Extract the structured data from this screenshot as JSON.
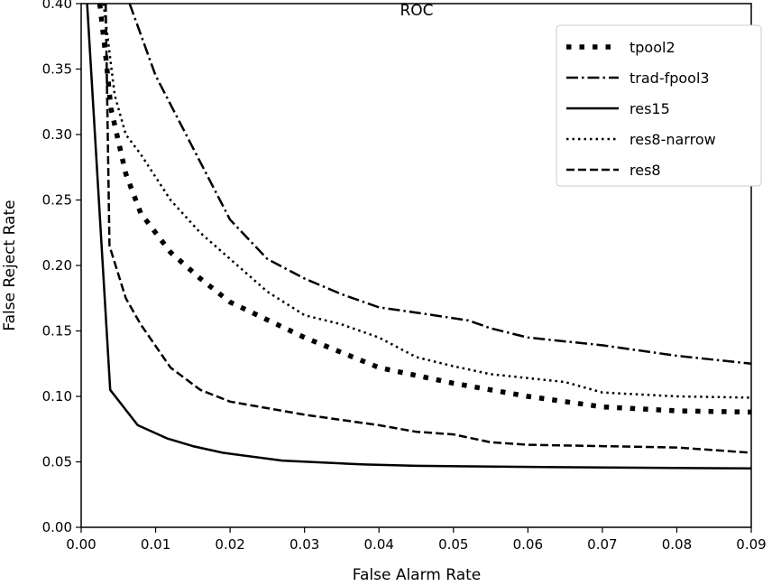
{
  "chart_data": {
    "type": "line",
    "title": "ROC",
    "xlabel": "False Alarm Rate",
    "ylabel": "False Reject Rate",
    "xlim": [
      0,
      0.09
    ],
    "ylim": [
      0,
      0.4
    ],
    "xticks": [
      "0.00",
      "0.01",
      "0.02",
      "0.03",
      "0.04",
      "0.05",
      "0.06",
      "0.07",
      "0.08",
      "0.09"
    ],
    "yticks": [
      "0.00",
      "0.05",
      "0.10",
      "0.15",
      "0.20",
      "0.25",
      "0.30",
      "0.35",
      "0.40"
    ],
    "grid": false,
    "legend_position": "top-right",
    "series": [
      {
        "name": "tpool2",
        "style": "thick-dotted",
        "color": "#000000",
        "x": [
          0.0025,
          0.0033,
          0.004,
          0.006,
          0.008,
          0.012,
          0.016,
          0.02,
          0.03,
          0.04,
          0.05,
          0.06,
          0.07,
          0.08,
          0.09
        ],
        "y": [
          0.4,
          0.36,
          0.32,
          0.27,
          0.24,
          0.21,
          0.19,
          0.172,
          0.145,
          0.122,
          0.11,
          0.1,
          0.092,
          0.089,
          0.088
        ]
      },
      {
        "name": "trad-fpool3",
        "style": "dash-dot",
        "color": "#000000",
        "x": [
          0.0065,
          0.01,
          0.015,
          0.02,
          0.025,
          0.03,
          0.035,
          0.04,
          0.045,
          0.052,
          0.055,
          0.06,
          0.07,
          0.08,
          0.09
        ],
        "y": [
          0.4,
          0.345,
          0.29,
          0.235,
          0.205,
          0.19,
          0.178,
          0.168,
          0.164,
          0.158,
          0.152,
          0.145,
          0.139,
          0.131,
          0.125
        ]
      },
      {
        "name": "res15",
        "style": "solid",
        "color": "#000000",
        "x": [
          0.0008,
          0.0039,
          0.0076,
          0.0115,
          0.015,
          0.019,
          0.027,
          0.038,
          0.045,
          0.062,
          0.09
        ],
        "y": [
          0.4,
          0.105,
          0.078,
          0.068,
          0.062,
          0.057,
          0.051,
          0.048,
          0.047,
          0.046,
          0.045
        ]
      },
      {
        "name": "res8-narrow",
        "style": "dotted",
        "color": "#000000",
        "x": [
          0.003,
          0.0045,
          0.006,
          0.008,
          0.012,
          0.016,
          0.02,
          0.025,
          0.03,
          0.035,
          0.04,
          0.045,
          0.05,
          0.055,
          0.065,
          0.07,
          0.08,
          0.09
        ],
        "y": [
          0.4,
          0.33,
          0.3,
          0.285,
          0.25,
          0.225,
          0.205,
          0.18,
          0.162,
          0.155,
          0.145,
          0.13,
          0.123,
          0.117,
          0.111,
          0.103,
          0.1,
          0.099
        ]
      },
      {
        "name": "res8",
        "style": "dashed",
        "color": "#000000",
        "x": [
          0.0033,
          0.0038,
          0.006,
          0.008,
          0.012,
          0.016,
          0.02,
          0.03,
          0.04,
          0.045,
          0.05,
          0.055,
          0.06,
          0.07,
          0.08,
          0.09
        ],
        "y": [
          0.4,
          0.215,
          0.175,
          0.155,
          0.122,
          0.105,
          0.096,
          0.086,
          0.078,
          0.073,
          0.071,
          0.065,
          0.063,
          0.062,
          0.061,
          0.057
        ]
      }
    ]
  }
}
